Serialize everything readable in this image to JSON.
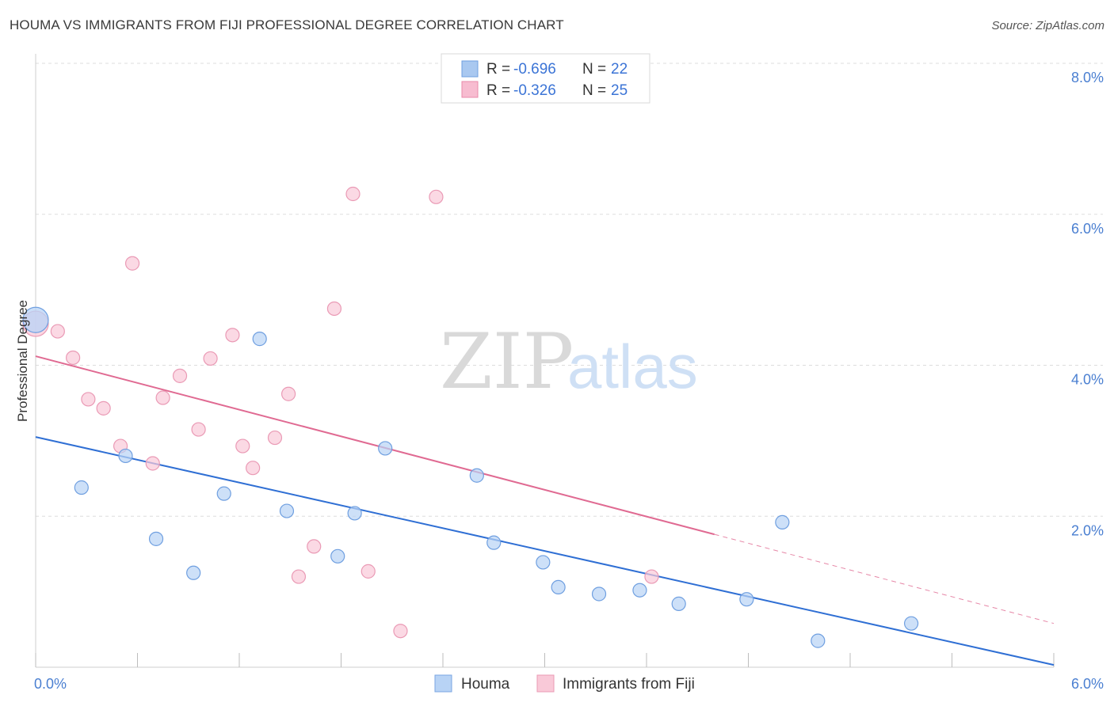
{
  "header": {
    "title": "HOUMA VS IMMIGRANTS FROM FIJI PROFESSIONAL DEGREE CORRELATION CHART",
    "source": "Source: ZipAtlas.com"
  },
  "watermark": {
    "zip": "ZIP",
    "atlas": "atlas"
  },
  "legend_top": [
    {
      "r_label": "R = ",
      "r_value": "-0.696",
      "n_label": "N = ",
      "n_value": "22",
      "color": "#a9c8f0",
      "stroke": "#6f9fe0"
    },
    {
      "r_label": "R = ",
      "r_value": "-0.326",
      "n_label": "N = ",
      "n_value": "25",
      "color": "#f7bcd0",
      "stroke": "#e98aaa"
    }
  ],
  "legend_bottom": [
    {
      "label": "Houma",
      "color": "#b8d3f5",
      "stroke": "#7aa6e2"
    },
    {
      "label": "Immigrants from Fiji",
      "color": "#f9c9d8",
      "stroke": "#ea9ab5"
    }
  ],
  "chart_data": {
    "type": "scatter",
    "title": "HOUMA VS IMMIGRANTS FROM FIJI PROFESSIONAL DEGREE CORRELATION CHART",
    "xlabel": "",
    "ylabel": "Professional Degree",
    "xlim": [
      0,
      6
    ],
    "ylim": [
      0,
      8
    ],
    "x_tick_labels": [
      "0.0%",
      "6.0%"
    ],
    "y_ticks": [
      2,
      4,
      6,
      8
    ],
    "y_tick_labels": [
      "2.0%",
      "4.0%",
      "6.0%",
      "8.0%"
    ],
    "grid": true,
    "legend_position": "top-center",
    "series": [
      {
        "name": "Houma",
        "color": "#6f9fe0",
        "fill": "#b8d3f5",
        "line_color": "#2f6fd4",
        "trend": {
          "x": [
            0,
            6
          ],
          "y": [
            3.05,
            0.03
          ],
          "dashed_from": null
        },
        "points": [
          {
            "x": 0.0,
            "y": 4.6,
            "big": true
          },
          {
            "x": 0.27,
            "y": 2.38
          },
          {
            "x": 0.53,
            "y": 2.8
          },
          {
            "x": 0.71,
            "y": 1.7
          },
          {
            "x": 0.93,
            "y": 1.25
          },
          {
            "x": 1.11,
            "y": 2.3
          },
          {
            "x": 1.32,
            "y": 4.35
          },
          {
            "x": 1.48,
            "y": 2.07
          },
          {
            "x": 1.78,
            "y": 1.47
          },
          {
            "x": 1.88,
            "y": 2.04
          },
          {
            "x": 2.06,
            "y": 2.9
          },
          {
            "x": 2.6,
            "y": 2.54
          },
          {
            "x": 2.7,
            "y": 1.65
          },
          {
            "x": 2.99,
            "y": 1.39
          },
          {
            "x": 3.08,
            "y": 1.06
          },
          {
            "x": 3.32,
            "y": 0.97
          },
          {
            "x": 3.56,
            "y": 1.02
          },
          {
            "x": 3.79,
            "y": 0.84
          },
          {
            "x": 4.19,
            "y": 0.9
          },
          {
            "x": 4.4,
            "y": 1.92
          },
          {
            "x": 4.61,
            "y": 0.35
          },
          {
            "x": 5.16,
            "y": 0.58
          }
        ]
      },
      {
        "name": "Immigrants from Fiji",
        "color": "#ea9ab5",
        "fill": "#f9c9d8",
        "line_color": "#e06a92",
        "trend": {
          "x": [
            0,
            6
          ],
          "y": [
            4.12,
            0.58
          ],
          "dashed_from": 4.0
        },
        "points": [
          {
            "x": 0.0,
            "y": 4.55,
            "big": true
          },
          {
            "x": 0.13,
            "y": 4.45
          },
          {
            "x": 0.22,
            "y": 4.1
          },
          {
            "x": 0.31,
            "y": 3.55
          },
          {
            "x": 0.4,
            "y": 3.43
          },
          {
            "x": 0.5,
            "y": 2.93
          },
          {
            "x": 0.57,
            "y": 5.35
          },
          {
            "x": 0.69,
            "y": 2.7
          },
          {
            "x": 0.75,
            "y": 3.57
          },
          {
            "x": 0.85,
            "y": 3.86
          },
          {
            "x": 0.96,
            "y": 3.15
          },
          {
            "x": 1.03,
            "y": 4.09
          },
          {
            "x": 1.16,
            "y": 4.4
          },
          {
            "x": 1.22,
            "y": 2.93
          },
          {
            "x": 1.28,
            "y": 2.64
          },
          {
            "x": 1.41,
            "y": 3.04
          },
          {
            "x": 1.49,
            "y": 3.62
          },
          {
            "x": 1.55,
            "y": 1.2
          },
          {
            "x": 1.64,
            "y": 1.6
          },
          {
            "x": 1.76,
            "y": 4.75
          },
          {
            "x": 1.87,
            "y": 6.27
          },
          {
            "x": 1.96,
            "y": 1.27
          },
          {
            "x": 2.15,
            "y": 0.48
          },
          {
            "x": 2.36,
            "y": 6.23
          },
          {
            "x": 3.63,
            "y": 1.2
          }
        ]
      }
    ]
  }
}
